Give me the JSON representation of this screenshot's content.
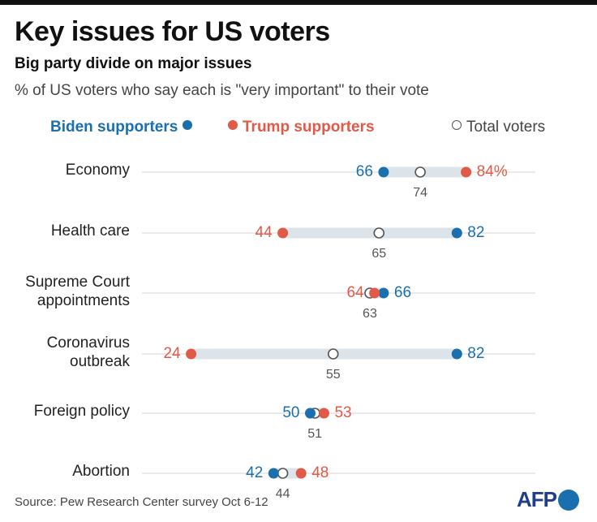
{
  "header": {
    "title": "Key issues for US voters",
    "subtitle": "Big party divide on major issues",
    "description": "% of US voters who say each is \"very important\" to their vote"
  },
  "legend": {
    "biden": "Biden supporters",
    "trump": "Trump supporters",
    "total": "Total voters"
  },
  "footer": {
    "source": "Source: Pew Research Center survey Oct 6-12",
    "logo": "AFP"
  },
  "colors": {
    "biden": "#1a6fae",
    "trump": "#e05a47",
    "total": "#555555",
    "range_bar": "#dce4ea"
  },
  "chart_data": {
    "type": "scatter",
    "unit": "%",
    "categories": [
      [
        "Economy"
      ],
      [
        "Health care"
      ],
      [
        "Supreme Court",
        "appointments"
      ],
      [
        "Coronavirus",
        "outbreak"
      ],
      [
        "Foreign policy"
      ],
      [
        "Abortion"
      ]
    ],
    "series": [
      {
        "name": "Biden supporters",
        "values": [
          66,
          82,
          66,
          82,
          50,
          42
        ]
      },
      {
        "name": "Trump supporters",
        "values": [
          84,
          44,
          64,
          24,
          53,
          48
        ]
      },
      {
        "name": "Total voters",
        "values": [
          74,
          65,
          63,
          55,
          51,
          44
        ]
      }
    ],
    "value_labels": {
      "biden": [
        "66",
        "82",
        "66",
        "82",
        "50",
        "42"
      ],
      "trump": [
        "84%",
        "44",
        "64",
        "24",
        "53",
        "48"
      ],
      "total": [
        "74",
        "65",
        "63",
        "55",
        "51",
        "44"
      ]
    },
    "legend_position": "top"
  }
}
